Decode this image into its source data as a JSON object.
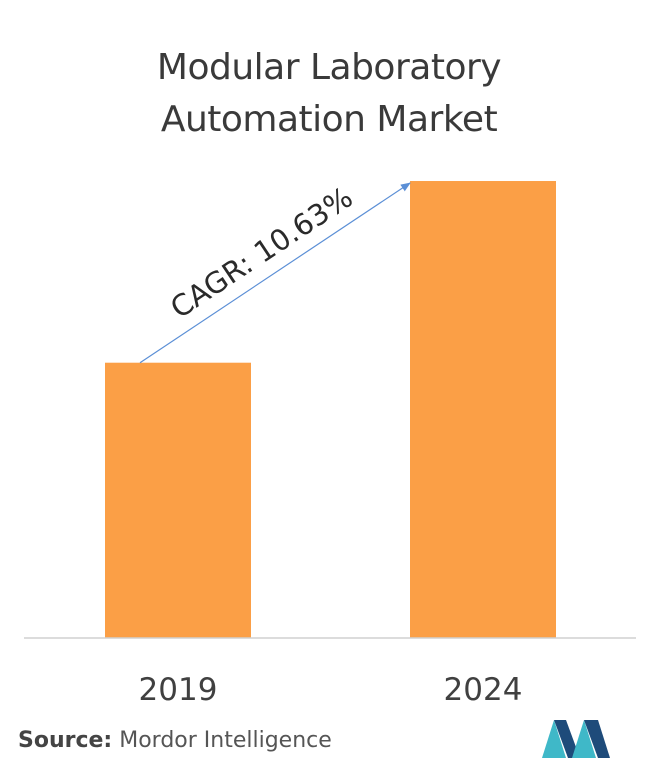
{
  "title_line1": "Modular Laboratory",
  "title_line2": "Automation Market",
  "chart_data": {
    "type": "bar",
    "categories": [
      "2019",
      "2024"
    ],
    "values": [
      1.0,
      1.66
    ],
    "ylim": [
      0,
      1.7
    ],
    "grid": false,
    "annotation": "CAGR: 10.63%",
    "bar_color": "#fb9f46"
  },
  "source": {
    "label": "Source:",
    "text": " Mordor Intelligence"
  },
  "colors": {
    "bar": "#fb9f46",
    "arrow": "#5b8fd6",
    "logo_dark": "#1e4b7a",
    "logo_light": "#3fb8c8"
  }
}
